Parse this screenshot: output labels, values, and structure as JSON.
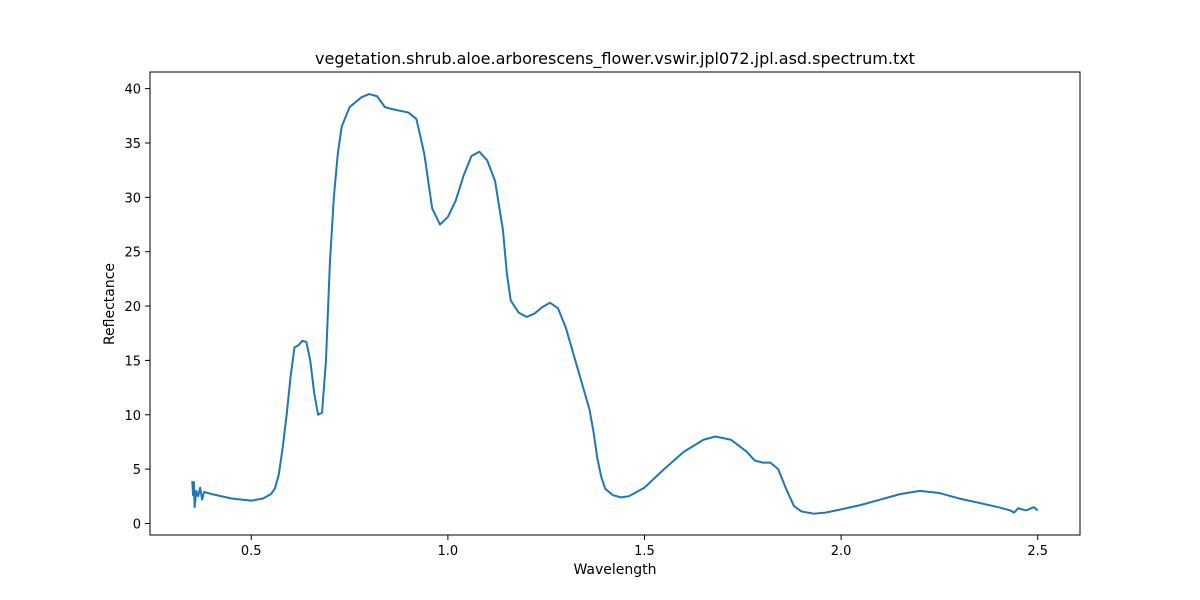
{
  "chart_data": {
    "type": "line",
    "title": "vegetation.shrub.aloe.arborescens_flower.vswir.jpl072.jpl.asd.spectrum.txt",
    "xlabel": "Wavelength",
    "ylabel": "Reflectance",
    "x": [
      0.35,
      0.352,
      0.354,
      0.356,
      0.36,
      0.365,
      0.37,
      0.375,
      0.38,
      0.4,
      0.45,
      0.5,
      0.53,
      0.55,
      0.56,
      0.57,
      0.58,
      0.59,
      0.6,
      0.61,
      0.62,
      0.63,
      0.64,
      0.65,
      0.66,
      0.67,
      0.68,
      0.69,
      0.7,
      0.71,
      0.72,
      0.73,
      0.75,
      0.78,
      0.8,
      0.82,
      0.84,
      0.86,
      0.9,
      0.92,
      0.94,
      0.96,
      0.98,
      1.0,
      1.02,
      1.04,
      1.06,
      1.08,
      1.1,
      1.12,
      1.14,
      1.15,
      1.16,
      1.18,
      1.2,
      1.22,
      1.24,
      1.26,
      1.28,
      1.3,
      1.32,
      1.34,
      1.36,
      1.37,
      1.38,
      1.39,
      1.4,
      1.42,
      1.44,
      1.46,
      1.5,
      1.55,
      1.6,
      1.65,
      1.68,
      1.72,
      1.76,
      1.78,
      1.8,
      1.82,
      1.84,
      1.86,
      1.88,
      1.9,
      1.93,
      1.96,
      2.0,
      2.05,
      2.1,
      2.15,
      2.2,
      2.25,
      2.3,
      2.35,
      2.4,
      2.43,
      2.44,
      2.45,
      2.47,
      2.49,
      2.5
    ],
    "series": [
      {
        "name": "Reflectance",
        "color": "#1f77b4",
        "values": [
          3.9,
          2.6,
          3.8,
          1.5,
          3.0,
          2.5,
          3.3,
          2.2,
          2.9,
          2.7,
          2.3,
          2.1,
          2.3,
          2.7,
          3.2,
          4.5,
          7,
          10,
          13.5,
          16.2,
          16.4,
          16.8,
          16.7,
          15.0,
          12,
          10,
          10.2,
          15,
          24,
          30,
          34,
          36.5,
          38.3,
          39.2,
          39.5,
          39.3,
          38.3,
          38.1,
          37.8,
          37.2,
          34,
          29,
          27.5,
          28.2,
          29.7,
          32,
          33.8,
          34.2,
          33.4,
          31.5,
          27,
          23,
          20.5,
          19.4,
          19.0,
          19.3,
          19.9,
          20.3,
          19.8,
          18,
          15.5,
          13,
          10.5,
          8.5,
          6,
          4.3,
          3.2,
          2.6,
          2.4,
          2.5,
          3.3,
          5.0,
          6.6,
          7.7,
          8.0,
          7.7,
          6.6,
          5.8,
          5.6,
          5.6,
          5.0,
          3.2,
          1.6,
          1.1,
          0.9,
          1.0,
          1.3,
          1.7,
          2.2,
          2.7,
          3.0,
          2.8,
          2.3,
          1.9,
          1.5,
          1.2,
          1.0,
          1.4,
          1.2,
          1.5,
          1.2
        ]
      }
    ],
    "xlim": [
      0.2425,
      2.6075
    ],
    "ylim": [
      -1.06,
      41.53
    ],
    "xticks": [
      0.5,
      {
        "value": 1,
        "label": "1.0"
      },
      1.5,
      {
        "value": 2,
        "label": "2.0"
      },
      2.5
    ],
    "yticks": [
      0,
      5,
      10,
      15,
      20,
      25,
      30,
      35,
      40
    ],
    "grid": false
  }
}
